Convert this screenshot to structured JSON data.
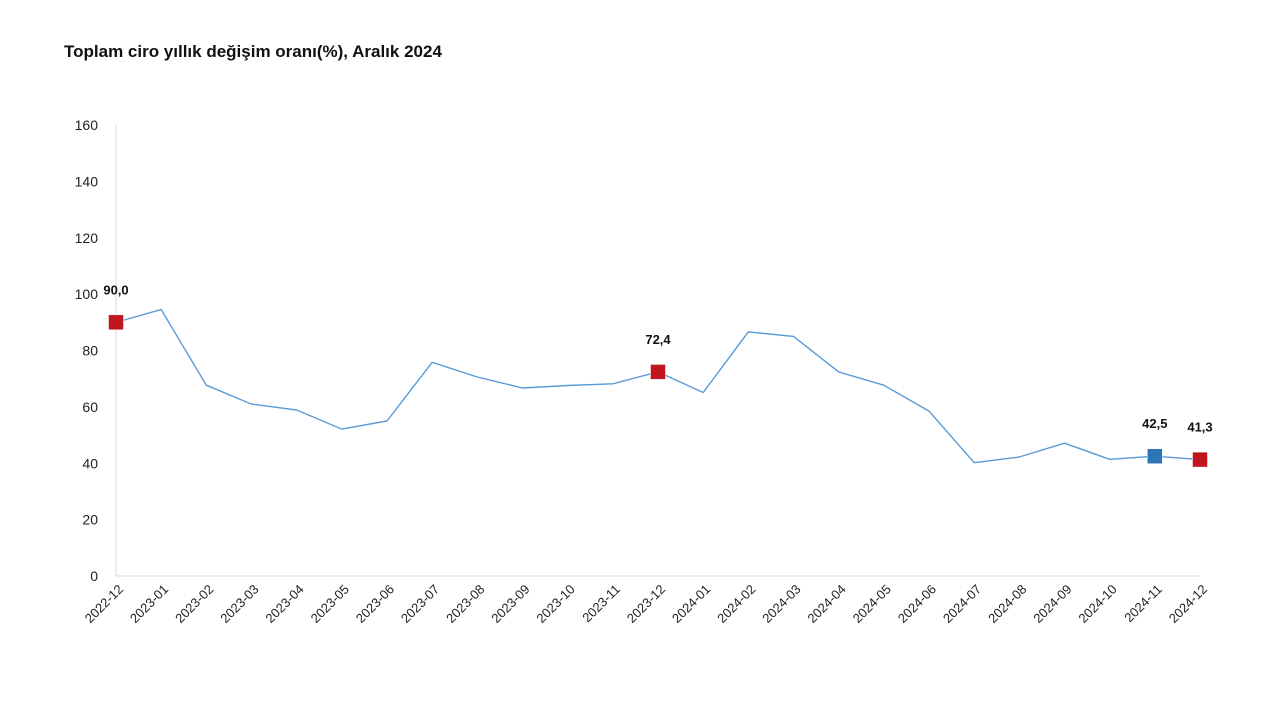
{
  "chart_data": {
    "type": "line",
    "title": "Toplam ciro yıllık değişim oranı(%), Aralık 2024",
    "xlabel": "",
    "ylabel": "",
    "ylim": [
      0,
      160
    ],
    "yticks": [
      "0",
      "20",
      "40",
      "60",
      "80",
      "100",
      "120",
      "140",
      "160"
    ],
    "grid": false,
    "legend": "none",
    "categories": [
      "2022-12",
      "2023-01",
      "2023-02",
      "2023-03",
      "2023-04",
      "2023-05",
      "2023-06",
      "2023-07",
      "2023-08",
      "2023-09",
      "2023-10",
      "2023-11",
      "2023-12",
      "2024-01",
      "2024-02",
      "2024-03",
      "2024-04",
      "2024-05",
      "2024-06",
      "2024-07",
      "2024-08",
      "2024-09",
      "2024-10",
      "2024-11",
      "2024-12"
    ],
    "series": [
      {
        "values": [
          90.0,
          94.5,
          67.7,
          61.0,
          58.9,
          52.1,
          55.0,
          75.8,
          70.6,
          66.7,
          67.6,
          68.2,
          72.4,
          65.1,
          86.6,
          85.0,
          72.4,
          67.7,
          58.5,
          40.2,
          42.2,
          47.1,
          41.4,
          42.5,
          41.3
        ],
        "color": "#5b9bd5"
      }
    ],
    "annotations": [
      {
        "category": "2022-12",
        "value": 90.0,
        "label": "90,0",
        "color": "#c0161d"
      },
      {
        "category": "2023-12",
        "value": 72.4,
        "label": "72,4",
        "color": "#c0161d"
      },
      {
        "category": "2024-11",
        "value": 42.5,
        "label": "42,5",
        "color": "#2e75b6"
      },
      {
        "category": "2024-12",
        "value": 41.3,
        "label": "41,3",
        "color": "#c0161d"
      }
    ],
    "colors": {
      "axis": "#d9d9d9",
      "line": "#5b9bd5",
      "highlight_red": "#c0161d",
      "highlight_blue": "#2e75b6"
    }
  }
}
